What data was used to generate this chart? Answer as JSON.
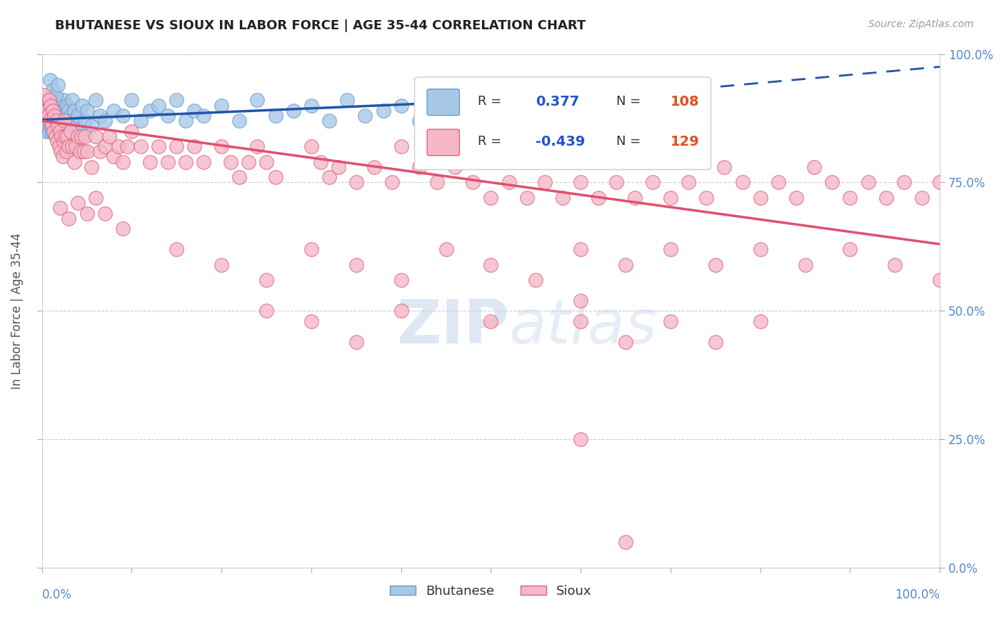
{
  "title": "BHUTANESE VS SIOUX IN LABOR FORCE | AGE 35-44 CORRELATION CHART",
  "source": "Source: ZipAtlas.com",
  "ylabel": "In Labor Force | Age 35-44",
  "x_min": 0.0,
  "x_max": 1.0,
  "y_min": 0.0,
  "y_max": 1.0,
  "blue_R": 0.377,
  "blue_N": 108,
  "pink_R": -0.439,
  "pink_N": 129,
  "blue_color": "#a8c8e8",
  "blue_edge_color": "#6699cc",
  "blue_line_color": "#2255aa",
  "pink_color": "#f4b8c8",
  "pink_edge_color": "#e06080",
  "pink_line_color": "#e05070",
  "blue_scatter": [
    [
      0.002,
      0.88
    ],
    [
      0.003,
      0.87
    ],
    [
      0.004,
      0.86
    ],
    [
      0.004,
      0.9
    ],
    [
      0.005,
      0.88
    ],
    [
      0.005,
      0.85
    ],
    [
      0.006,
      0.89
    ],
    [
      0.006,
      0.87
    ],
    [
      0.007,
      0.91
    ],
    [
      0.007,
      0.86
    ],
    [
      0.008,
      0.88
    ],
    [
      0.008,
      0.85
    ],
    [
      0.009,
      0.9
    ],
    [
      0.009,
      0.87
    ],
    [
      0.01,
      0.89
    ],
    [
      0.01,
      0.86
    ],
    [
      0.011,
      0.88
    ],
    [
      0.011,
      0.85
    ],
    [
      0.012,
      0.91
    ],
    [
      0.012,
      0.87
    ],
    [
      0.013,
      0.89
    ],
    [
      0.013,
      0.86
    ],
    [
      0.014,
      0.88
    ],
    [
      0.014,
      0.85
    ],
    [
      0.015,
      0.9
    ],
    [
      0.015,
      0.87
    ],
    [
      0.016,
      0.89
    ],
    [
      0.016,
      0.86
    ],
    [
      0.017,
      0.88
    ],
    [
      0.017,
      0.85
    ],
    [
      0.018,
      0.91
    ],
    [
      0.018,
      0.87
    ],
    [
      0.019,
      0.89
    ],
    [
      0.019,
      0.86
    ],
    [
      0.02,
      0.88
    ],
    [
      0.02,
      0.85
    ],
    [
      0.021,
      0.9
    ],
    [
      0.021,
      0.87
    ],
    [
      0.022,
      0.89
    ],
    [
      0.022,
      0.86
    ],
    [
      0.023,
      0.88
    ],
    [
      0.023,
      0.85
    ],
    [
      0.024,
      0.91
    ],
    [
      0.024,
      0.87
    ],
    [
      0.025,
      0.89
    ],
    [
      0.026,
      0.88
    ],
    [
      0.027,
      0.86
    ],
    [
      0.028,
      0.9
    ],
    [
      0.029,
      0.87
    ],
    [
      0.03,
      0.89
    ],
    [
      0.031,
      0.86
    ],
    [
      0.032,
      0.88
    ],
    [
      0.033,
      0.85
    ],
    [
      0.034,
      0.91
    ],
    [
      0.035,
      0.87
    ],
    [
      0.036,
      0.89
    ],
    [
      0.038,
      0.86
    ],
    [
      0.04,
      0.88
    ],
    [
      0.042,
      0.85
    ],
    [
      0.045,
      0.9
    ],
    [
      0.048,
      0.87
    ],
    [
      0.05,
      0.89
    ],
    [
      0.055,
      0.86
    ],
    [
      0.06,
      0.91
    ],
    [
      0.065,
      0.88
    ],
    [
      0.07,
      0.87
    ],
    [
      0.08,
      0.89
    ],
    [
      0.09,
      0.88
    ],
    [
      0.1,
      0.91
    ],
    [
      0.11,
      0.87
    ],
    [
      0.12,
      0.89
    ],
    [
      0.13,
      0.9
    ],
    [
      0.14,
      0.88
    ],
    [
      0.15,
      0.91
    ],
    [
      0.16,
      0.87
    ],
    [
      0.17,
      0.89
    ],
    [
      0.18,
      0.88
    ],
    [
      0.2,
      0.9
    ],
    [
      0.22,
      0.87
    ],
    [
      0.24,
      0.91
    ],
    [
      0.26,
      0.88
    ],
    [
      0.28,
      0.89
    ],
    [
      0.3,
      0.9
    ],
    [
      0.32,
      0.87
    ],
    [
      0.34,
      0.91
    ],
    [
      0.36,
      0.88
    ],
    [
      0.38,
      0.89
    ],
    [
      0.4,
      0.9
    ],
    [
      0.42,
      0.87
    ],
    [
      0.44,
      0.91
    ],
    [
      0.46,
      0.88
    ],
    [
      0.48,
      0.89
    ],
    [
      0.5,
      0.9
    ],
    [
      0.52,
      0.87
    ],
    [
      0.54,
      0.91
    ],
    [
      0.56,
      0.88
    ],
    [
      0.58,
      0.89
    ],
    [
      0.6,
      0.9
    ],
    [
      0.62,
      0.87
    ],
    [
      0.64,
      0.91
    ],
    [
      0.66,
      0.88
    ],
    [
      0.68,
      0.89
    ],
    [
      0.009,
      0.95
    ],
    [
      0.012,
      0.93
    ],
    [
      0.015,
      0.92
    ],
    [
      0.018,
      0.94
    ]
  ],
  "pink_scatter": [
    [
      0.003,
      0.92
    ],
    [
      0.005,
      0.89
    ],
    [
      0.007,
      0.88
    ],
    [
      0.008,
      0.91
    ],
    [
      0.009,
      0.87
    ],
    [
      0.01,
      0.9
    ],
    [
      0.011,
      0.86
    ],
    [
      0.012,
      0.89
    ],
    [
      0.013,
      0.85
    ],
    [
      0.014,
      0.88
    ],
    [
      0.015,
      0.84
    ],
    [
      0.016,
      0.87
    ],
    [
      0.017,
      0.83
    ],
    [
      0.018,
      0.86
    ],
    [
      0.019,
      0.82
    ],
    [
      0.02,
      0.85
    ],
    [
      0.021,
      0.81
    ],
    [
      0.022,
      0.84
    ],
    [
      0.023,
      0.8
    ],
    [
      0.024,
      0.83
    ],
    [
      0.025,
      0.87
    ],
    [
      0.026,
      0.84
    ],
    [
      0.027,
      0.81
    ],
    [
      0.028,
      0.84
    ],
    [
      0.03,
      0.82
    ],
    [
      0.032,
      0.85
    ],
    [
      0.034,
      0.82
    ],
    [
      0.036,
      0.79
    ],
    [
      0.038,
      0.82
    ],
    [
      0.04,
      0.84
    ],
    [
      0.042,
      0.81
    ],
    [
      0.044,
      0.84
    ],
    [
      0.046,
      0.81
    ],
    [
      0.048,
      0.84
    ],
    [
      0.05,
      0.81
    ],
    [
      0.055,
      0.78
    ],
    [
      0.06,
      0.84
    ],
    [
      0.065,
      0.81
    ],
    [
      0.07,
      0.82
    ],
    [
      0.075,
      0.84
    ],
    [
      0.08,
      0.8
    ],
    [
      0.085,
      0.82
    ],
    [
      0.09,
      0.79
    ],
    [
      0.095,
      0.82
    ],
    [
      0.1,
      0.85
    ],
    [
      0.11,
      0.82
    ],
    [
      0.12,
      0.79
    ],
    [
      0.13,
      0.82
    ],
    [
      0.14,
      0.79
    ],
    [
      0.15,
      0.82
    ],
    [
      0.16,
      0.79
    ],
    [
      0.17,
      0.82
    ],
    [
      0.18,
      0.79
    ],
    [
      0.02,
      0.7
    ],
    [
      0.03,
      0.68
    ],
    [
      0.04,
      0.71
    ],
    [
      0.05,
      0.69
    ],
    [
      0.06,
      0.72
    ],
    [
      0.07,
      0.69
    ],
    [
      0.09,
      0.66
    ],
    [
      0.2,
      0.82
    ],
    [
      0.21,
      0.79
    ],
    [
      0.22,
      0.76
    ],
    [
      0.23,
      0.79
    ],
    [
      0.24,
      0.82
    ],
    [
      0.25,
      0.79
    ],
    [
      0.26,
      0.76
    ],
    [
      0.3,
      0.82
    ],
    [
      0.31,
      0.79
    ],
    [
      0.32,
      0.76
    ],
    [
      0.33,
      0.78
    ],
    [
      0.35,
      0.75
    ],
    [
      0.37,
      0.78
    ],
    [
      0.39,
      0.75
    ],
    [
      0.4,
      0.82
    ],
    [
      0.42,
      0.78
    ],
    [
      0.44,
      0.75
    ],
    [
      0.46,
      0.78
    ],
    [
      0.48,
      0.75
    ],
    [
      0.5,
      0.72
    ],
    [
      0.52,
      0.75
    ],
    [
      0.54,
      0.72
    ],
    [
      0.56,
      0.75
    ],
    [
      0.58,
      0.72
    ],
    [
      0.6,
      0.75
    ],
    [
      0.62,
      0.72
    ],
    [
      0.64,
      0.75
    ],
    [
      0.66,
      0.72
    ],
    [
      0.68,
      0.75
    ],
    [
      0.7,
      0.72
    ],
    [
      0.72,
      0.75
    ],
    [
      0.74,
      0.72
    ],
    [
      0.76,
      0.78
    ],
    [
      0.78,
      0.75
    ],
    [
      0.8,
      0.72
    ],
    [
      0.82,
      0.75
    ],
    [
      0.84,
      0.72
    ],
    [
      0.86,
      0.78
    ],
    [
      0.88,
      0.75
    ],
    [
      0.9,
      0.72
    ],
    [
      0.92,
      0.75
    ],
    [
      0.94,
      0.72
    ],
    [
      0.96,
      0.75
    ],
    [
      0.98,
      0.72
    ],
    [
      1.0,
      0.75
    ],
    [
      0.15,
      0.62
    ],
    [
      0.2,
      0.59
    ],
    [
      0.25,
      0.56
    ],
    [
      0.3,
      0.62
    ],
    [
      0.35,
      0.59
    ],
    [
      0.4,
      0.56
    ],
    [
      0.45,
      0.62
    ],
    [
      0.5,
      0.59
    ],
    [
      0.55,
      0.56
    ],
    [
      0.6,
      0.62
    ],
    [
      0.65,
      0.59
    ],
    [
      0.7,
      0.62
    ],
    [
      0.75,
      0.59
    ],
    [
      0.8,
      0.62
    ],
    [
      0.85,
      0.59
    ],
    [
      0.9,
      0.62
    ],
    [
      0.95,
      0.59
    ],
    [
      1.0,
      0.56
    ],
    [
      0.25,
      0.5
    ],
    [
      0.3,
      0.48
    ],
    [
      0.35,
      0.44
    ],
    [
      0.4,
      0.5
    ],
    [
      0.5,
      0.48
    ],
    [
      0.6,
      0.52
    ],
    [
      0.6,
      0.48
    ],
    [
      0.65,
      0.44
    ],
    [
      0.7,
      0.48
    ],
    [
      0.75,
      0.44
    ],
    [
      0.8,
      0.48
    ],
    [
      0.6,
      0.25
    ],
    [
      0.65,
      0.05
    ]
  ],
  "watermark_zip": "ZIP",
  "watermark_atlas": "atlas",
  "title_fontsize": 13,
  "source_fontsize": 10,
  "tick_label_color": "#5588cc",
  "axis_label_color": "#555555",
  "grid_color": "#cccccc",
  "background_color": "#ffffff"
}
